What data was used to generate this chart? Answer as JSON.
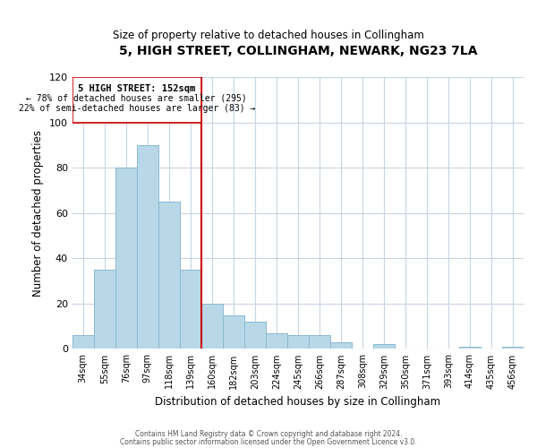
{
  "title": "5, HIGH STREET, COLLINGHAM, NEWARK, NG23 7LA",
  "subtitle": "Size of property relative to detached houses in Collingham",
  "xlabel": "Distribution of detached houses by size in Collingham",
  "ylabel": "Number of detached properties",
  "bar_labels": [
    "34sqm",
    "55sqm",
    "76sqm",
    "97sqm",
    "118sqm",
    "139sqm",
    "160sqm",
    "182sqm",
    "203sqm",
    "224sqm",
    "245sqm",
    "266sqm",
    "287sqm",
    "308sqm",
    "329sqm",
    "350sqm",
    "371sqm",
    "393sqm",
    "414sqm",
    "435sqm",
    "456sqm"
  ],
  "bar_values": [
    6,
    35,
    80,
    90,
    65,
    35,
    20,
    15,
    12,
    7,
    6,
    6,
    3,
    0,
    2,
    0,
    0,
    0,
    1,
    0,
    1
  ],
  "bar_color": "#b8d8e8",
  "bar_edge_color": "#8ab8d0",
  "reference_line_index": 6,
  "reference_line_label": "5 HIGH STREET: 152sqm",
  "annotation_line1": "← 78% of detached houses are smaller (295)",
  "annotation_line2": "22% of semi-detached houses are larger (83) →",
  "annotation_box_color": "#ffffff",
  "annotation_box_edge": "#cc0000",
  "reference_line_color": "#cc0000",
  "ylim": [
    0,
    120
  ],
  "yticks": [
    0,
    20,
    40,
    60,
    80,
    100,
    120
  ],
  "footnote1": "Contains HM Land Registry data © Crown copyright and database right 2024.",
  "footnote2": "Contains public sector information licensed under the Open Government Licence v3.0.",
  "bg_color": "#ffffff",
  "grid_color": "#c8d4e4"
}
